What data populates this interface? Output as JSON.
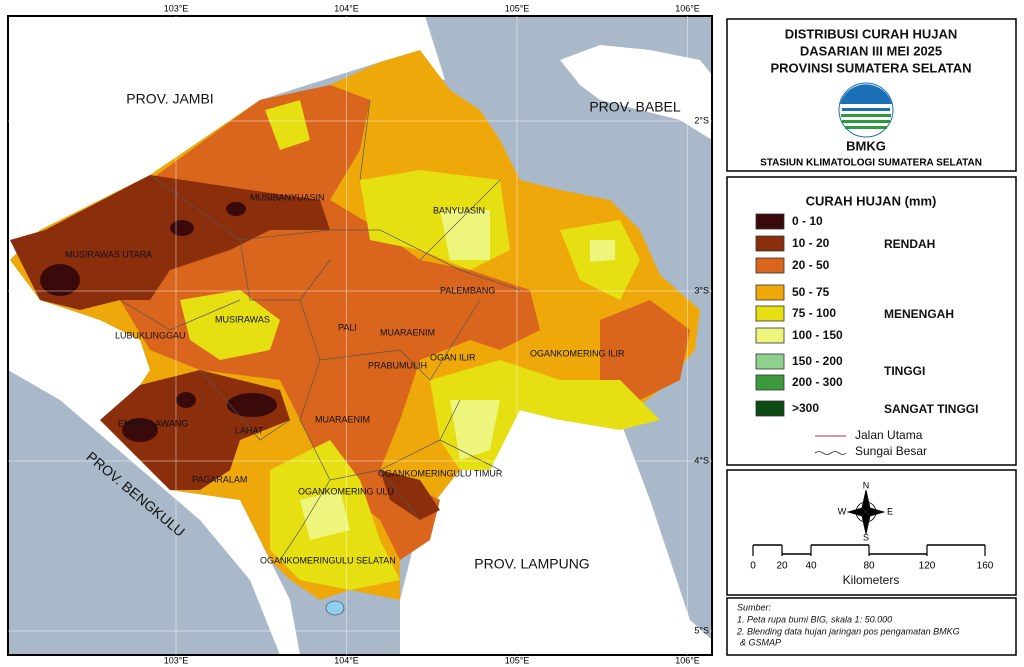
{
  "header": {
    "title_lines": [
      "DISTRIBUSI CURAH HUJAN",
      "DASARIAN III MEI 2025",
      "PROVINSI SUMATERA SELATAN"
    ],
    "agency": "BMKG",
    "station": "STASIUN KLIMATOLOGI SUMATERA SELATAN"
  },
  "legend": {
    "title": "CURAH HUJAN (mm)",
    "items": [
      {
        "label": "0 - 10",
        "color": "#3a0a0a"
      },
      {
        "label": "10 - 20",
        "color": "#8b2e0c"
      },
      {
        "label": "20 - 50",
        "color": "#d9661c"
      },
      {
        "label": "50 - 75",
        "color": "#eea80a"
      },
      {
        "label": "75 - 100",
        "color": "#e6df12"
      },
      {
        "label": "100 - 150",
        "color": "#eef57c"
      },
      {
        "label": "150 - 200",
        "color": "#8fd08f"
      },
      {
        "label": "200 - 300",
        "color": "#3c9a3c"
      },
      {
        "label": ">300",
        "color": "#0b4a12"
      }
    ],
    "classes": [
      "RENDAH",
      "MENENGAH",
      "TINGGI",
      "SANGAT TINGGI"
    ],
    "lines": [
      "Jalan Utama",
      "Sungai Besar"
    ]
  },
  "compass": {
    "north": "N",
    "south": "S",
    "east": "E",
    "west": "W"
  },
  "scale": {
    "ticks": [
      0,
      20,
      40,
      80,
      120,
      160
    ],
    "unit": "Kilometers"
  },
  "source": {
    "heading": "Sumber:",
    "lines": [
      "1. Peta rupa bumi BIG, skala 1: 50.000",
      "2. Blending data hujan jaringan pos pengamatan BMKG",
      "& GSMAP"
    ]
  },
  "map": {
    "lon_ticks": [
      {
        "value": 103,
        "label": "103°E"
      },
      {
        "value": 104,
        "label": "104°E"
      },
      {
        "value": 105,
        "label": "105°E"
      },
      {
        "value": 106,
        "label": "106°E"
      }
    ],
    "lat_ticks": [
      {
        "value": 2,
        "label": "2°S"
      },
      {
        "value": 3,
        "label": "3°S"
      },
      {
        "value": 4,
        "label": "4°S"
      },
      {
        "value": 5,
        "label": "5°S"
      }
    ],
    "provinces": [
      "PROV. JAMBI",
      "PROV. BABEL",
      "PROV. BENGKULU",
      "PROV. LAMPUNG"
    ],
    "districts": [
      "MUSIBANYUASIN",
      "BANYUASIN",
      "MUSIRAWAS UTARA",
      "PALEMBANG",
      "MUSIRAWAS",
      "LUBUKLINGGAU",
      "PALI",
      "MUARAENIM",
      "OGAN ILIR",
      "OGANKOMERING ILIR",
      "PRABUMULIH",
      "EMPAT LAWANG",
      "LAHAT",
      "MUARAENIM",
      "PAGARALAM",
      "OGANKOMERINGULU TIMUR",
      "OGANKOMERING ULU",
      "OGANKOMERINGULU SELATAN"
    ]
  }
}
